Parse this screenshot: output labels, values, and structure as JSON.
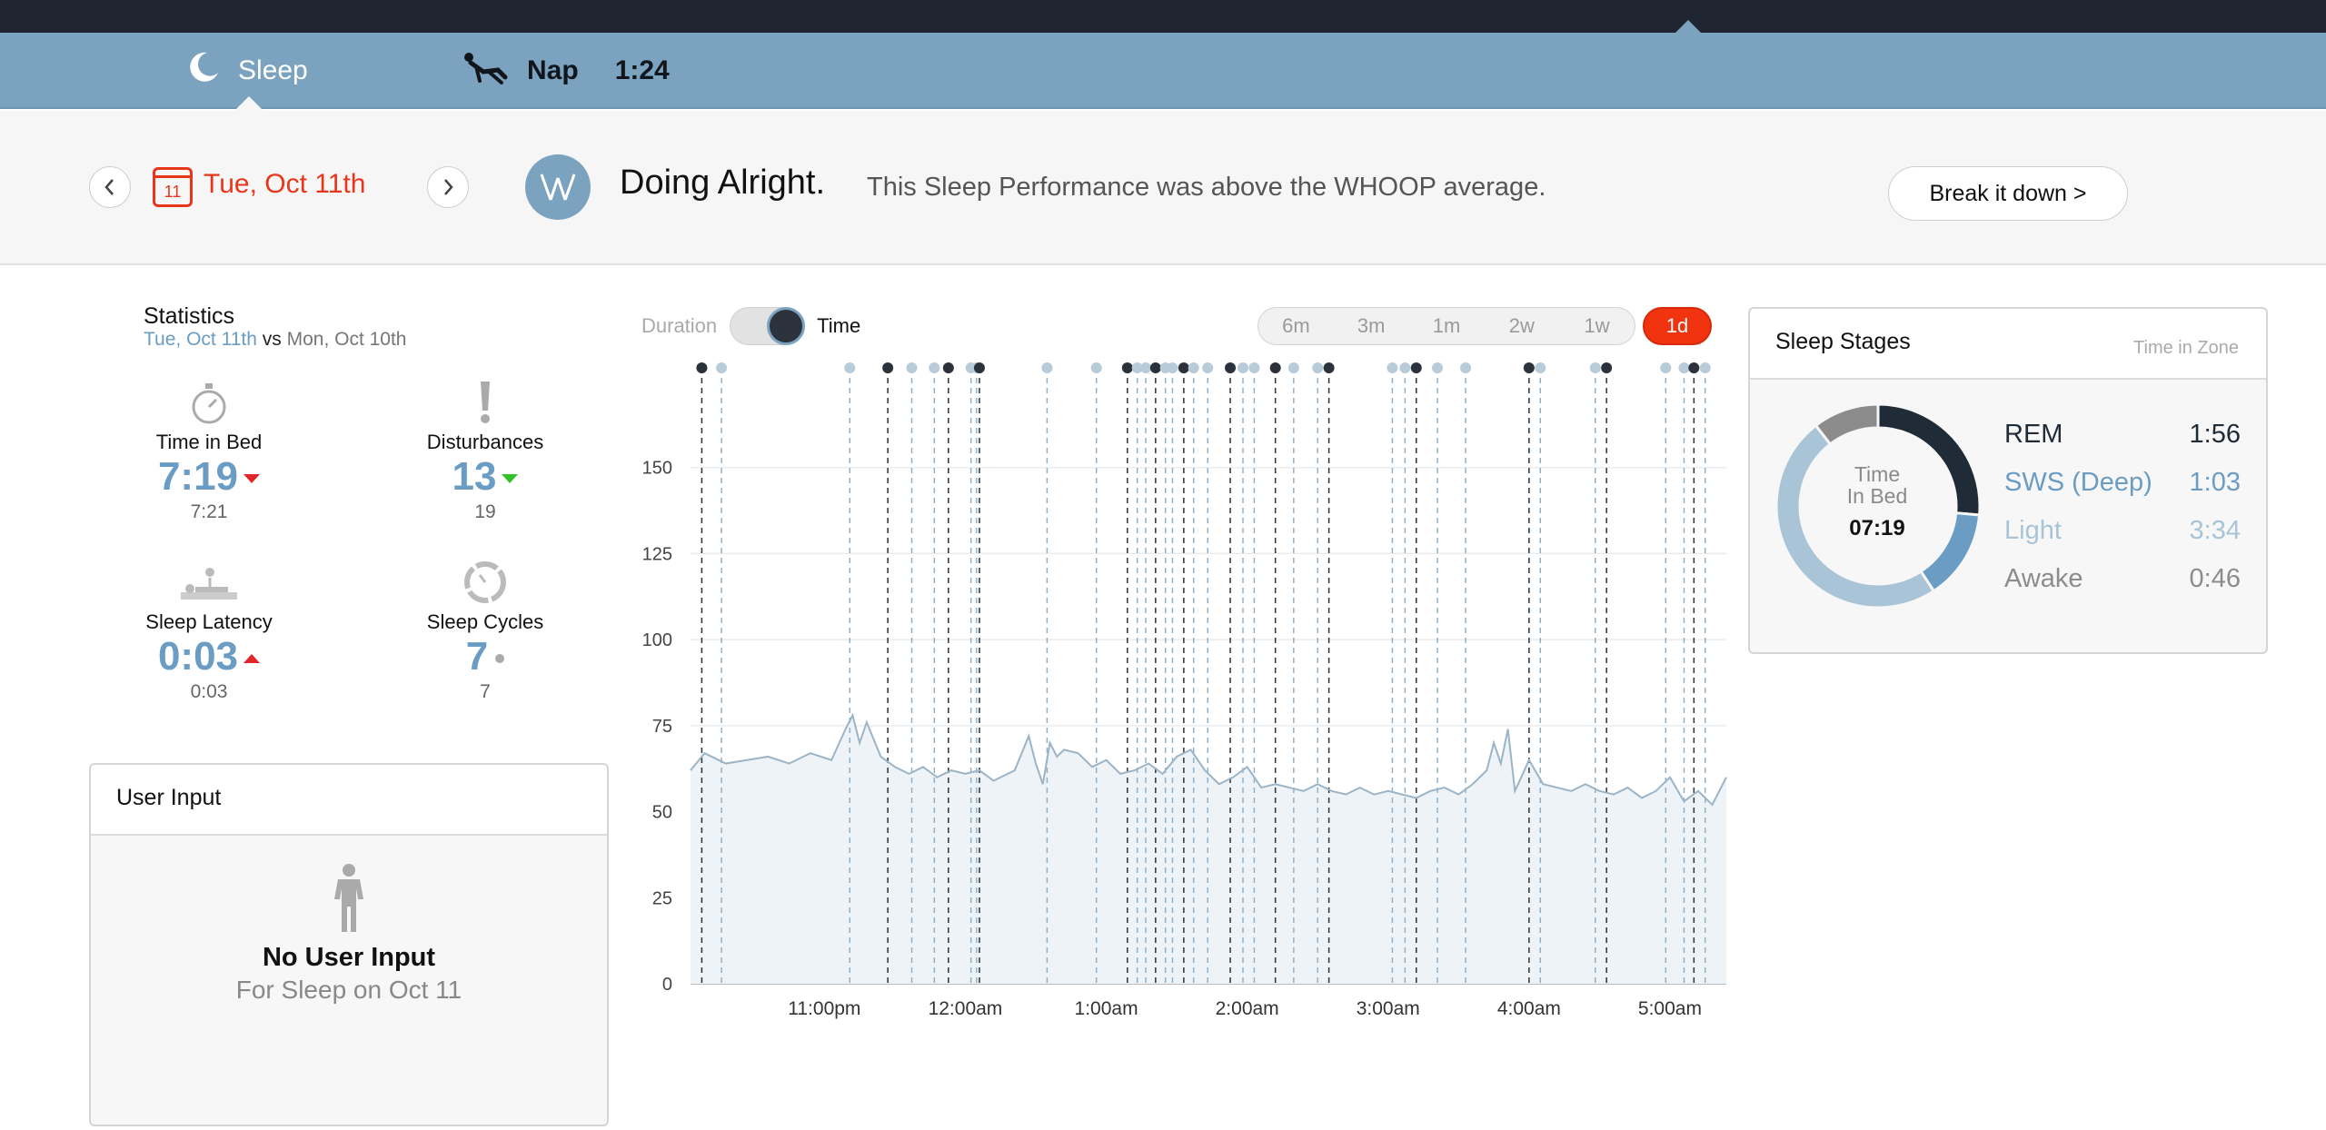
{
  "tabs": {
    "sleep_label": "Sleep",
    "nap_label": "Nap",
    "nap_time": "1:24"
  },
  "header": {
    "calendar_day": "11",
    "date": "Tue, Oct 11th",
    "headline": "Doing Alright.",
    "subline": "This Sleep Performance was above the WHOOP average.",
    "breakdown_label": "Break it down  >"
  },
  "statistics": {
    "title": "Statistics",
    "current_date": "Tue, Oct 11th",
    "vs": "vs",
    "compare_date": "Mon, Oct 10th",
    "items": [
      {
        "label": "Time in Bed",
        "value": "7:19",
        "previous": "7:21",
        "trend": "down-red",
        "icon": "stopwatch-icon"
      },
      {
        "label": "Disturbances",
        "value": "13",
        "previous": "19",
        "trend": "down-green",
        "icon": "exclamation-icon"
      },
      {
        "label": "Sleep Latency",
        "value": "0:03",
        "previous": "0:03",
        "trend": "up-red",
        "icon": "lying-person-icon"
      },
      {
        "label": "Sleep Cycles",
        "value": "7",
        "previous": "7",
        "trend": "neutral",
        "icon": "cycle-icon"
      }
    ]
  },
  "user_input": {
    "title": "User Input",
    "empty_title": "No User Input",
    "empty_sub": "For Sleep on Oct 11"
  },
  "chart_controls": {
    "duration_label": "Duration",
    "time_label": "Time",
    "ranges": [
      "6m",
      "3m",
      "1m",
      "2w",
      "1w"
    ],
    "active_range": "1d"
  },
  "chart_data": {
    "type": "line",
    "title": "",
    "xlabel": "",
    "ylabel": "",
    "ylim": [
      0,
      175
    ],
    "y_ticks": [
      0,
      25,
      50,
      75,
      100,
      125,
      150
    ],
    "x_ticks": [
      "11:00pm",
      "12:00am",
      "1:00am",
      "2:00am",
      "3:00am",
      "4:00am",
      "5:00am"
    ],
    "x_range_hours": [
      -1.95,
      5.4
    ],
    "grid": true,
    "series": [
      {
        "name": "",
        "x_hours": [
          -1.95,
          -1.85,
          -1.7,
          -1.55,
          -1.4,
          -1.25,
          -1.1,
          -0.95,
          -0.85,
          -0.8,
          -0.75,
          -0.7,
          -0.6,
          -0.5,
          -0.4,
          -0.3,
          -0.2,
          -0.1,
          0.0,
          0.1,
          0.2,
          0.35,
          0.45,
          0.5,
          0.55,
          0.6,
          0.65,
          0.7,
          0.8,
          0.9,
          1.0,
          1.1,
          1.2,
          1.3,
          1.4,
          1.5,
          1.6,
          1.7,
          1.8,
          1.9,
          2.0,
          2.1,
          2.2,
          2.3,
          2.4,
          2.5,
          2.6,
          2.7,
          2.8,
          2.9,
          3.0,
          3.1,
          3.2,
          3.3,
          3.4,
          3.5,
          3.6,
          3.7,
          3.75,
          3.8,
          3.85,
          3.9,
          4.0,
          4.1,
          4.2,
          4.3,
          4.4,
          4.5,
          4.6,
          4.7,
          4.8,
          4.9,
          5.0,
          5.1,
          5.2,
          5.3,
          5.4
        ],
        "values": [
          62,
          67,
          64,
          65,
          66,
          64,
          67,
          65,
          74,
          78,
          70,
          76,
          66,
          63,
          61,
          63,
          60,
          62,
          61,
          62,
          59,
          62,
          72,
          64,
          58,
          70,
          66,
          68,
          67,
          63,
          65,
          61,
          62,
          64,
          61,
          66,
          68,
          62,
          58,
          60,
          63,
          57,
          58,
          57,
          56,
          58,
          56,
          55,
          57,
          55,
          56,
          55,
          54,
          56,
          57,
          55,
          58,
          62,
          70,
          64,
          74,
          56,
          65,
          58,
          57,
          56,
          58,
          56,
          55,
          57,
          54,
          56,
          60,
          53,
          56,
          52,
          60
        ]
      }
    ],
    "stage_markers_hours": [
      -1.87,
      -1.73,
      -0.82,
      -0.55,
      -0.38,
      -0.22,
      -0.12,
      0.04,
      0.08,
      0.1,
      0.58,
      0.93,
      1.15,
      1.22,
      1.28,
      1.35,
      1.42,
      1.47,
      1.55,
      1.62,
      1.72,
      1.88,
      1.97,
      2.05,
      2.2,
      2.33,
      2.5,
      2.58,
      3.03,
      3.12,
      3.2,
      3.35,
      3.55,
      4.0,
      4.08,
      4.47,
      4.55,
      4.97,
      5.1,
      5.17,
      5.25
    ]
  },
  "sleep_stages": {
    "title": "Sleep Stages",
    "subtitle": "Time in Zone",
    "center_line1": "Time",
    "center_line2": "In Bed",
    "center_value": "07:19",
    "stages": [
      {
        "name": "REM",
        "value": "1:56",
        "minutes": 116,
        "color": "#1f2b36"
      },
      {
        "name": "SWS (Deep)",
        "value": "1:03",
        "minutes": 63,
        "color": "#6a9cc4"
      },
      {
        "name": "Light",
        "value": "3:34",
        "minutes": 214,
        "color": "#a9c4d6"
      },
      {
        "name": "Awake",
        "value": "0:46",
        "minutes": 46,
        "color": "#8c8c8c"
      }
    ]
  },
  "colors": {
    "accent": "#f2330f",
    "brand_blue": "#7ba3bf",
    "dark_bar": "#1e2530"
  }
}
